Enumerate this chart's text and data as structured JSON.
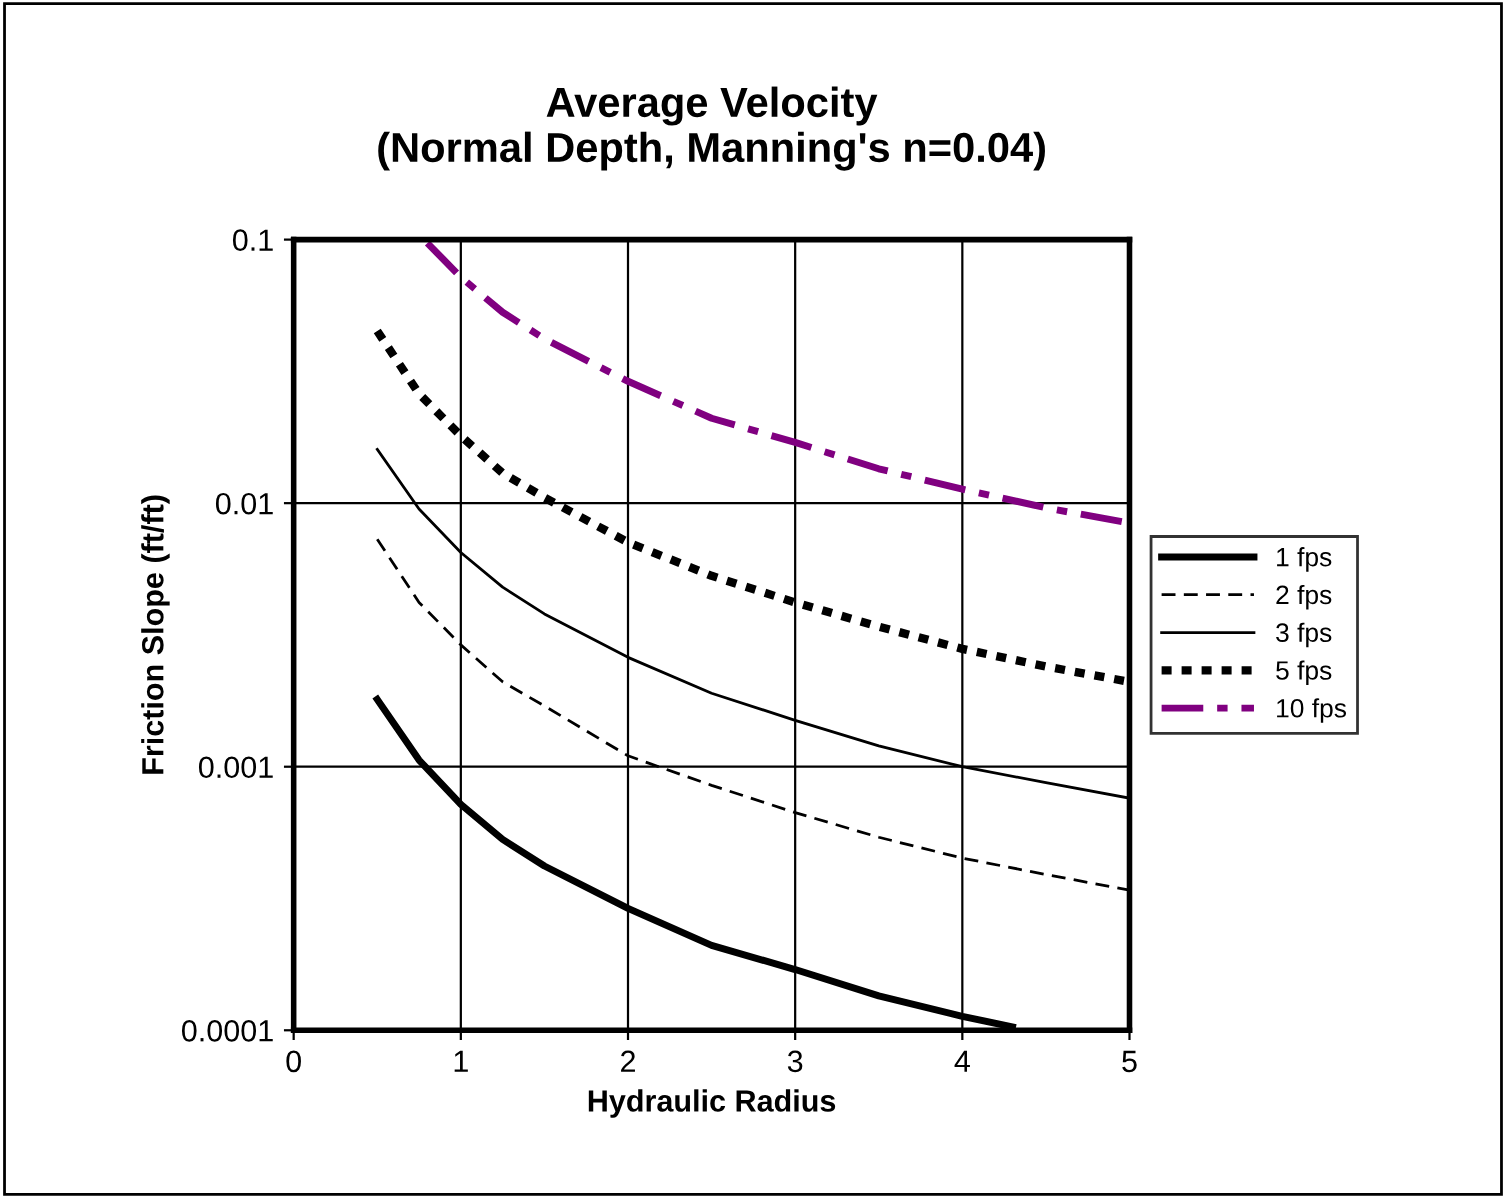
{
  "chart_data": {
    "type": "line",
    "title": "Average Velocity\n(Normal Depth, Manning's n=0.04)",
    "xlabel": "Hydraulic Radius",
    "ylabel": "Friction Slope (ft/ft)",
    "log": "y",
    "grid": true,
    "legend": "right",
    "marker": "none",
    "xlim": [
      0,
      5
    ],
    "xticks": [
      0,
      1,
      2,
      3,
      4,
      5
    ],
    "ylim": [
      0.0001,
      0.1
    ],
    "yticks": [
      {
        "value": 0.0001,
        "label": "0.0001"
      },
      {
        "value": 0.001,
        "label": "0.001"
      },
      {
        "value": 0.01,
        "label": "0.01"
      },
      {
        "value": 0.1,
        "label": "0.1"
      }
    ],
    "series": [
      {
        "name": "1 fps",
        "color": "#000000",
        "line_style": "solid",
        "x": [
          0.5,
          0.75,
          1,
          1.25,
          1.5,
          2,
          2.5,
          3,
          3.5,
          4,
          4.3
        ],
        "values": [
          0.0018,
          0.00106,
          0.00072,
          0.00053,
          0.00042,
          0.00029,
          0.00021,
          0.00017,
          0.000135,
          0.000113,
          0.000103
        ]
      },
      {
        "name": "2 fps",
        "color": "#000000",
        "line_style": "dashed",
        "x": [
          0.5,
          0.75,
          1,
          1.25,
          1.5,
          2,
          2.5,
          3,
          3.5,
          4,
          4.5,
          5
        ],
        "values": [
          0.0073,
          0.0042,
          0.0029,
          0.0021,
          0.0017,
          0.0011,
          0.00085,
          0.00067,
          0.00054,
          0.00045,
          0.00039,
          0.00034
        ]
      },
      {
        "name": "3 fps",
        "color": "#000000",
        "line_style": "solid",
        "x": [
          0.5,
          0.75,
          1,
          1.25,
          1.5,
          2,
          2.5,
          3,
          3.5,
          4,
          4.5,
          5
        ],
        "values": [
          0.016,
          0.0095,
          0.0065,
          0.0048,
          0.0038,
          0.0026,
          0.0019,
          0.0015,
          0.0012,
          0.001,
          0.00087,
          0.00076
        ]
      },
      {
        "name": "5 fps",
        "color": "#000000",
        "line_style": "dotted",
        "x": [
          0.5,
          0.75,
          1,
          1.25,
          1.5,
          2,
          2.5,
          3,
          3.5,
          4,
          4.5,
          5
        ],
        "values": [
          0.045,
          0.026,
          0.018,
          0.013,
          0.0105,
          0.0071,
          0.0053,
          0.0042,
          0.0034,
          0.0028,
          0.0024,
          0.0021
        ]
      },
      {
        "name": "10 fps",
        "color": "#800080",
        "line_style": "dashdot",
        "x": [
          0.8,
          1,
          1.25,
          1.5,
          2,
          2.5,
          3,
          3.5,
          4,
          4.5,
          5
        ],
        "values": [
          0.097,
          0.072,
          0.053,
          0.042,
          0.029,
          0.021,
          0.017,
          0.0135,
          0.0113,
          0.0096,
          0.0084
        ]
      }
    ]
  }
}
